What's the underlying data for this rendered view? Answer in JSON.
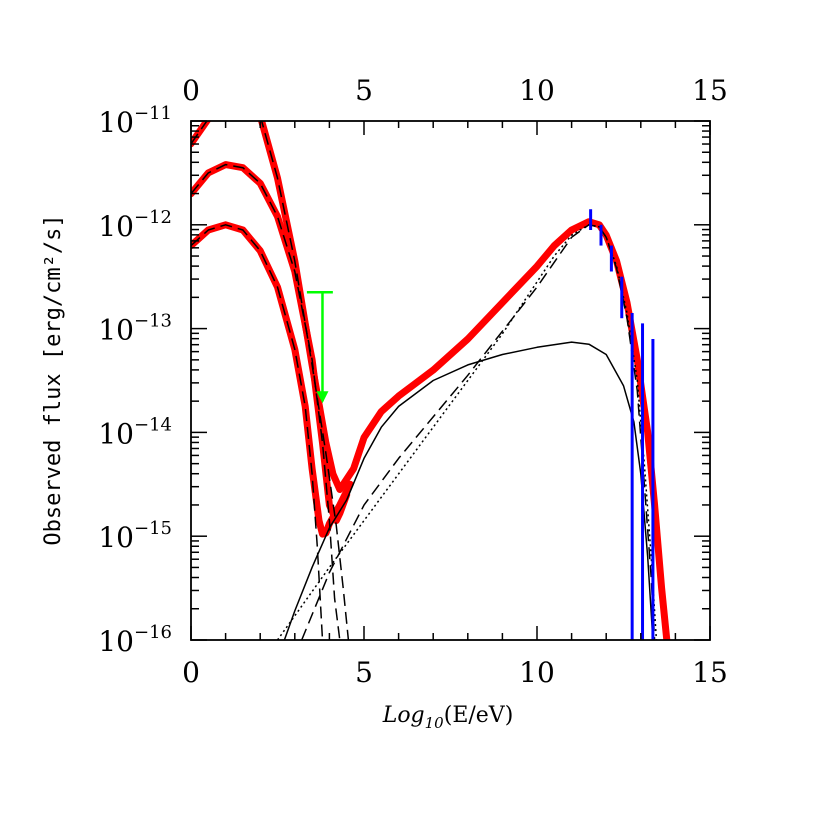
{
  "chart_data": {
    "type": "line",
    "xlabel_prefix": "Log",
    "xlabel_sub": "10",
    "xlabel_suffix": "(E/eV)",
    "ylabel": "Observed flux [erg/cm²/s]",
    "xlim": [
      0,
      15
    ],
    "ylim_log10": [
      -16,
      -11
    ],
    "x_ticks": [
      "0",
      "5",
      "10",
      "15"
    ],
    "x_top_ticks": [
      "0",
      "5",
      "10",
      "15"
    ],
    "y_ticks": [
      {
        "base": "10",
        "exp": "−11"
      },
      {
        "base": "10",
        "exp": "−12"
      },
      {
        "base": "10",
        "exp": "−13"
      },
      {
        "base": "10",
        "exp": "−14"
      },
      {
        "base": "10",
        "exp": "−15"
      },
      {
        "base": "10",
        "exp": "−16"
      }
    ],
    "grid": false,
    "series": [
      {
        "style": "red-thick",
        "color": "#ff0000",
        "points": [
          [
            0.0,
            -11.22
          ],
          [
            0.5,
            -10.98
          ],
          [
            0.8,
            -10.85
          ]
        ]
      },
      {
        "style": "red-thick",
        "color": "#ff0000",
        "points": [
          [
            0.0,
            -11.7
          ],
          [
            0.5,
            -11.5
          ],
          [
            1.0,
            -11.42
          ],
          [
            1.5,
            -11.45
          ],
          [
            2.0,
            -11.6
          ],
          [
            2.5,
            -11.92
          ],
          [
            3.0,
            -12.45
          ],
          [
            3.5,
            -13.3
          ],
          [
            3.8,
            -14.1
          ],
          [
            4.0,
            -14.7
          ],
          [
            4.2,
            -14.85
          ],
          [
            4.3,
            -14.78
          ],
          [
            4.5,
            -14.6
          ]
        ]
      },
      {
        "style": "red-thick",
        "color": "#ff0000",
        "points": [
          [
            0.0,
            -12.2
          ],
          [
            0.5,
            -12.05
          ],
          [
            1.0,
            -12.0
          ],
          [
            1.5,
            -12.05
          ],
          [
            2.0,
            -12.25
          ],
          [
            2.5,
            -12.6
          ],
          [
            3.0,
            -13.2
          ],
          [
            3.3,
            -13.75
          ],
          [
            3.5,
            -14.35
          ],
          [
            3.7,
            -14.85
          ],
          [
            3.8,
            -14.98
          ],
          [
            3.9,
            -14.97
          ],
          [
            4.0,
            -14.88
          ],
          [
            4.3,
            -14.7
          ],
          [
            4.6,
            -14.5
          ]
        ]
      },
      {
        "style": "red-thick",
        "color": "#ff0000",
        "points": [
          [
            2.0,
            -10.95
          ],
          [
            2.5,
            -11.55
          ],
          [
            3.0,
            -12.35
          ],
          [
            3.5,
            -13.35
          ],
          [
            3.9,
            -14.1
          ],
          [
            4.1,
            -14.4
          ],
          [
            4.3,
            -14.55
          ],
          [
            4.7,
            -14.35
          ],
          [
            5.0,
            -14.05
          ],
          [
            5.5,
            -13.8
          ],
          [
            6.0,
            -13.65
          ],
          [
            7.0,
            -13.4
          ],
          [
            8.0,
            -13.1
          ],
          [
            9.0,
            -12.75
          ],
          [
            10.0,
            -12.4
          ],
          [
            10.5,
            -12.2
          ],
          [
            11.0,
            -12.05
          ],
          [
            11.5,
            -11.97
          ],
          [
            11.8,
            -12.0
          ],
          [
            12.0,
            -12.1
          ],
          [
            12.3,
            -12.35
          ],
          [
            12.6,
            -12.75
          ],
          [
            12.9,
            -13.3
          ],
          [
            13.2,
            -14.0
          ],
          [
            13.4,
            -14.7
          ],
          [
            13.6,
            -15.5
          ],
          [
            13.75,
            -16.0
          ]
        ]
      },
      {
        "style": "black-dashed",
        "color": "#000000",
        "points": [
          [
            0.0,
            -11.22
          ],
          [
            0.5,
            -10.98
          ],
          [
            0.8,
            -10.85
          ]
        ]
      },
      {
        "style": "black-dashed",
        "color": "#000000",
        "points": [
          [
            0.0,
            -11.7
          ],
          [
            0.5,
            -11.5
          ],
          [
            1.0,
            -11.42
          ],
          [
            1.5,
            -11.45
          ],
          [
            2.0,
            -11.6
          ],
          [
            2.5,
            -11.92
          ],
          [
            3.0,
            -12.45
          ],
          [
            3.5,
            -13.3
          ],
          [
            3.8,
            -14.1
          ],
          [
            4.0,
            -14.85
          ],
          [
            4.15,
            -15.6
          ],
          [
            4.3,
            -16.0
          ]
        ]
      },
      {
        "style": "black-dashed",
        "color": "#000000",
        "points": [
          [
            0.0,
            -12.2
          ],
          [
            0.5,
            -12.05
          ],
          [
            1.0,
            -12.0
          ],
          [
            1.5,
            -12.05
          ],
          [
            2.0,
            -12.25
          ],
          [
            2.5,
            -12.6
          ],
          [
            3.0,
            -13.2
          ],
          [
            3.3,
            -13.75
          ],
          [
            3.5,
            -14.4
          ],
          [
            3.65,
            -15.1
          ],
          [
            3.8,
            -16.0
          ]
        ]
      },
      {
        "style": "black-dashed",
        "color": "#000000",
        "points": [
          [
            2.0,
            -10.95
          ],
          [
            2.5,
            -11.55
          ],
          [
            3.0,
            -12.35
          ],
          [
            3.5,
            -13.35
          ],
          [
            3.9,
            -14.2
          ],
          [
            4.2,
            -14.9
          ],
          [
            4.4,
            -15.5
          ],
          [
            4.55,
            -16.0
          ]
        ]
      },
      {
        "style": "black-solid",
        "color": "#000000",
        "points": [
          [
            2.7,
            -16.0
          ],
          [
            3.0,
            -15.72
          ],
          [
            3.5,
            -15.3
          ],
          [
            4.0,
            -14.92
          ],
          [
            4.5,
            -14.65
          ],
          [
            5.0,
            -14.25
          ],
          [
            5.5,
            -13.95
          ],
          [
            6.0,
            -13.75
          ],
          [
            7.0,
            -13.5
          ],
          [
            8.0,
            -13.35
          ],
          [
            9.0,
            -13.25
          ],
          [
            10.0,
            -13.18
          ],
          [
            11.0,
            -13.13
          ],
          [
            11.5,
            -13.15
          ],
          [
            12.0,
            -13.25
          ],
          [
            12.5,
            -13.55
          ],
          [
            12.8,
            -13.9
          ],
          [
            13.0,
            -14.4
          ],
          [
            13.2,
            -15.2
          ],
          [
            13.35,
            -16.0
          ]
        ]
      },
      {
        "style": "black-dotted",
        "color": "#000000",
        "points": [
          [
            2.5,
            -16.0
          ],
          [
            4.0,
            -15.3
          ],
          [
            5.0,
            -14.85
          ],
          [
            6.0,
            -14.4
          ],
          [
            7.0,
            -13.95
          ],
          [
            8.0,
            -13.5
          ],
          [
            9.0,
            -13.05
          ],
          [
            10.0,
            -12.55
          ],
          [
            10.5,
            -12.3
          ],
          [
            11.0,
            -12.1
          ],
          [
            11.5,
            -12.0
          ],
          [
            11.8,
            -12.02
          ],
          [
            12.0,
            -12.12
          ],
          [
            12.3,
            -12.4
          ],
          [
            12.6,
            -12.85
          ],
          [
            12.9,
            -13.5
          ],
          [
            13.1,
            -14.3
          ],
          [
            13.3,
            -15.2
          ],
          [
            13.45,
            -16.0
          ]
        ]
      },
      {
        "style": "black-dashed",
        "color": "#000000",
        "points": [
          [
            3.2,
            -16.0
          ],
          [
            4.0,
            -15.35
          ],
          [
            5.0,
            -14.7
          ],
          [
            6.0,
            -14.25
          ],
          [
            8.0,
            -13.45
          ],
          [
            10.0,
            -12.6
          ],
          [
            11.0,
            -12.12
          ],
          [
            11.5,
            -12.0
          ],
          [
            11.8,
            -12.02
          ],
          [
            12.0,
            -12.12
          ],
          [
            12.3,
            -12.42
          ],
          [
            12.6,
            -12.9
          ],
          [
            12.9,
            -13.6
          ],
          [
            13.1,
            -14.5
          ],
          [
            13.3,
            -15.4
          ],
          [
            13.4,
            -16.0
          ]
        ]
      }
    ],
    "upper_limit": {
      "color": "#00ff00",
      "x": 3.8,
      "x_range": [
        3.35,
        4.1
      ],
      "y_top": -12.65,
      "y_arrow": -13.7
    },
    "error_bars": {
      "color": "#0000ff",
      "points": [
        {
          "x": 11.55,
          "y_low": -12.05,
          "y_high": -11.85
        },
        {
          "x": 11.85,
          "y_low": -12.2,
          "y_high": -12.0
        },
        {
          "x": 12.15,
          "y_low": -12.45,
          "y_high": -12.2
        },
        {
          "x": 12.45,
          "y_low": -12.9,
          "y_high": -12.5
        },
        {
          "x": 12.75,
          "y_low": -16.0,
          "y_high": -12.85
        },
        {
          "x": 13.05,
          "y_low": -16.0,
          "y_high": -12.95
        },
        {
          "x": 13.35,
          "y_low": -16.0,
          "y_high": -13.1
        }
      ]
    }
  }
}
